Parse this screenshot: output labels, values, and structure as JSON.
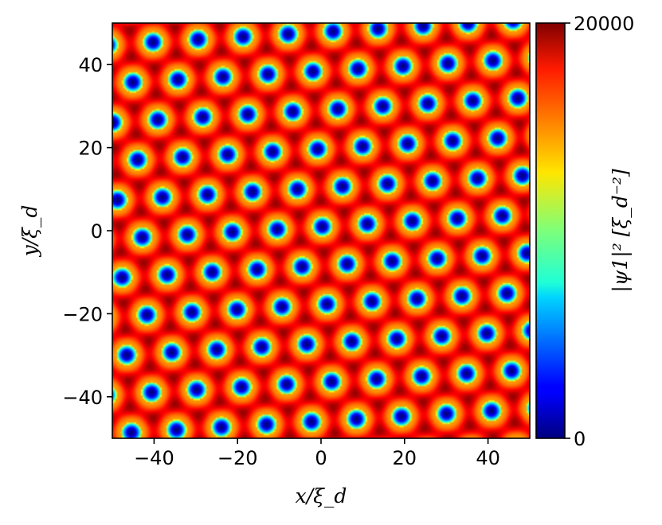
{
  "chart_data": {
    "type": "heatmap",
    "title": "",
    "xlabel": "x/ξ_d",
    "ylabel": "y/ξ_d",
    "xlim": [
      -50,
      50
    ],
    "ylim": [
      -50,
      50
    ],
    "xticks": [
      -40,
      -20,
      0,
      20,
      40
    ],
    "yticks": [
      -40,
      -20,
      0,
      20,
      40
    ],
    "xtick_labels": [
      "−40",
      "−20",
      "0",
      "20",
      "40"
    ],
    "ytick_labels": [
      "−40",
      "−20",
      "0",
      "20",
      "40"
    ],
    "colorbar": {
      "label": "|ψ1|² [ξ_d⁻²]",
      "min": 0,
      "max": 20000,
      "tick_labels": [
        "0",
        "20000"
      ],
      "colormap": "jet"
    },
    "background_density": 14500,
    "vortex_lattice": {
      "description_visible": "triangular lattice of density minima (vortices)",
      "spacing": 10.8,
      "core_density": 0,
      "peak_density": 19500
    },
    "grid": false
  }
}
